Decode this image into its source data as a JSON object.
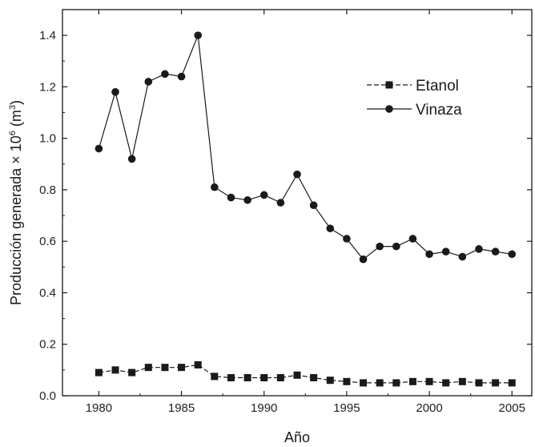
{
  "chart_data": {
    "type": "line",
    "xlabel": "Año",
    "ylabel": "Producción generada × 10",
    "ylabel_exponent": "6",
    "ylabel_unit_open": " (m",
    "ylabel_unit_exponent": "3",
    "ylabel_unit_close": ")",
    "xlim": [
      1977.8,
      2006.2
    ],
    "ylim": [
      0.0,
      1.5
    ],
    "x_ticks": [
      1980,
      1985,
      1990,
      1995,
      2000,
      2005
    ],
    "y_ticks": [
      0.0,
      0.2,
      0.4,
      0.6,
      0.8,
      1.0,
      1.2,
      1.4
    ],
    "y_tick_labels": [
      "0.0",
      "0.2",
      "0.4",
      "0.6",
      "0.8",
      "1.0",
      "1.2",
      "1.4"
    ],
    "legend_position": "top-right",
    "grid": false,
    "x": [
      1980,
      1981,
      1982,
      1983,
      1984,
      1985,
      1986,
      1987,
      1988,
      1989,
      1990,
      1991,
      1992,
      1993,
      1994,
      1995,
      1996,
      1997,
      1998,
      1999,
      2000,
      2001,
      2002,
      2003,
      2004,
      2005
    ],
    "series": [
      {
        "name": "Etanol",
        "marker": "square",
        "line_style": "dashed",
        "values": [
          0.09,
          0.1,
          0.09,
          0.11,
          0.11,
          0.11,
          0.12,
          0.075,
          0.07,
          0.07,
          0.07,
          0.07,
          0.08,
          0.07,
          0.06,
          0.055,
          0.05,
          0.05,
          0.05,
          0.055,
          0.055,
          0.05,
          0.055,
          0.05,
          0.05,
          0.05
        ]
      },
      {
        "name": "Vinaza",
        "marker": "circle",
        "line_style": "solid",
        "values": [
          0.96,
          1.18,
          0.92,
          1.22,
          1.25,
          1.24,
          1.4,
          0.81,
          0.77,
          0.76,
          0.78,
          0.75,
          0.86,
          0.74,
          0.65,
          0.61,
          0.53,
          0.58,
          0.58,
          0.61,
          0.55,
          0.56,
          0.54,
          0.57,
          0.56,
          0.55
        ]
      }
    ],
    "colors": {
      "ink": "#1a1a1a",
      "background": "#ffffff"
    }
  }
}
